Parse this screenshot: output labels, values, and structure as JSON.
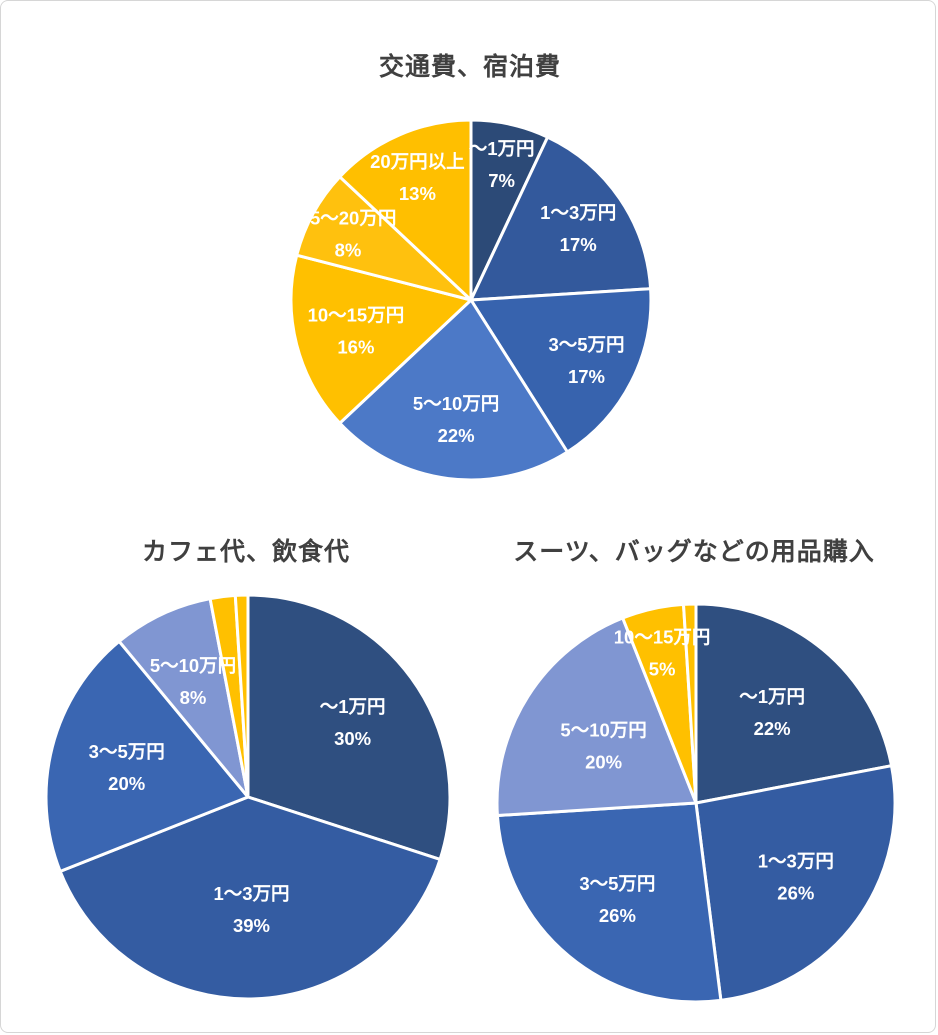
{
  "frame": {
    "background": "#ffffff",
    "border_color": "#d6d6d6"
  },
  "text_colors": {
    "title": "#404040",
    "slice_label": "#ffffff"
  },
  "chart_data": [
    {
      "type": "pie",
      "title": "交通費、宿泊費",
      "data_labels": "inside",
      "legend_position": "none",
      "unit": "%",
      "slices": [
        {
          "label": "～1万円",
          "value": 7,
          "color": "#2C4A77",
          "label_r": 0.78
        },
        {
          "label": "1～3万円",
          "value": 17,
          "color": "#33599C",
          "label_r": 0.72
        },
        {
          "label": "3～5万円",
          "value": 17,
          "color": "#3763AE",
          "label_r": 0.72
        },
        {
          "label": "5～10万円",
          "value": 22,
          "color": "#4C79C7",
          "label_r": 0.66
        },
        {
          "label": "10～15万円",
          "value": 16,
          "color": "#FFC000",
          "label_r": 0.66
        },
        {
          "label": "15～20万円",
          "value": 8,
          "color": "#FFC10E",
          "label_r": 0.78
        },
        {
          "label": "20万円以上",
          "value": 13,
          "color": "#FFBF00",
          "label_r": 0.75
        }
      ]
    },
    {
      "type": "pie",
      "title": "カフェ代、飲食代",
      "data_labels": "inside",
      "legend_position": "none",
      "unit": "%",
      "slices": [
        {
          "label": "～1万円",
          "value": 30,
          "color": "#2F4F80",
          "label_r": 0.64
        },
        {
          "label": "1～3万円",
          "value": 39,
          "color": "#345CA2",
          "label_r": 0.55
        },
        {
          "label": "3～5万円",
          "value": 20,
          "color": "#3A66B2",
          "label_r": 0.62
        },
        {
          "label": "5～10万円",
          "value": 8,
          "color": "#8096D2",
          "label_r": 0.64
        },
        {
          "label": "",
          "value": 2,
          "color": "#FFC000",
          "label_visible": false
        },
        {
          "label": "",
          "value": 1,
          "color": "#FFC000",
          "label_visible": false
        }
      ]
    },
    {
      "type": "pie",
      "title": "スーツ、バッグなどの用品購入",
      "data_labels": "inside",
      "legend_position": "none",
      "unit": "%",
      "slices": [
        {
          "label": "～1万円",
          "value": 22,
          "color": "#2F4F80",
          "label_r": 0.6
        },
        {
          "label": "1～3万円",
          "value": 26,
          "color": "#345CA2",
          "label_r": 0.62
        },
        {
          "label": "3～5万円",
          "value": 26,
          "color": "#3A66B2",
          "label_r": 0.62
        },
        {
          "label": "5～10万円",
          "value": 20,
          "color": "#8096D2",
          "label_r": 0.55
        },
        {
          "label": "10～15万円",
          "value": 5,
          "color": "#FFC000",
          "label_r": 0.78
        },
        {
          "label": "",
          "value": 1,
          "color": "#FFC000",
          "label_visible": false
        }
      ]
    }
  ]
}
